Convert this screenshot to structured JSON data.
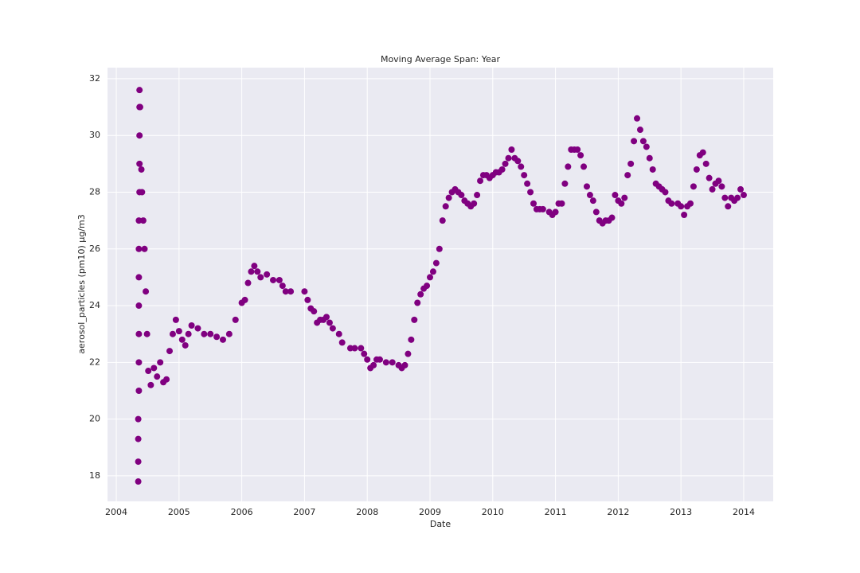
{
  "chart_data": {
    "type": "scatter",
    "title": "Moving Average Span: Year",
    "x_label": "Date",
    "y_label": "aerosol_particles (pm10) µg/m3",
    "color": "#800080",
    "grid": true,
    "xlim": [
      2003.86,
      2014.47
    ],
    "ylim": [
      17.1,
      32.39
    ],
    "xticks": [
      2004,
      2005,
      2006,
      2007,
      2008,
      2009,
      2010,
      2011,
      2012,
      2013,
      2014
    ],
    "yticks": [
      18,
      20,
      22,
      24,
      26,
      28,
      30,
      32
    ],
    "x": [
      2004.35,
      2004.35,
      2004.35,
      2004.35,
      2004.36,
      2004.36,
      2004.36,
      2004.36,
      2004.36,
      2004.36,
      2004.36,
      2004.37,
      2004.37,
      2004.37,
      2004.37,
      2004.37,
      2004.38,
      2004.4,
      2004.41,
      2004.43,
      2004.45,
      2004.47,
      2004.49,
      2004.51,
      2004.55,
      2004.6,
      2004.65,
      2004.7,
      2004.75,
      2004.8,
      2004.85,
      2004.9,
      2004.95,
      2005.0,
      2005.05,
      2005.1,
      2005.15,
      2005.2,
      2005.3,
      2005.4,
      2005.5,
      2005.6,
      2005.7,
      2005.8,
      2005.9,
      2006.0,
      2006.05,
      2006.1,
      2006.15,
      2006.2,
      2006.25,
      2006.3,
      2006.4,
      2006.5,
      2006.6,
      2006.65,
      2006.7,
      2006.78,
      2007.0,
      2007.05,
      2007.1,
      2007.15,
      2007.2,
      2007.25,
      2007.3,
      2007.35,
      2007.4,
      2007.45,
      2007.55,
      2007.6,
      2007.73,
      2007.8,
      2007.9,
      2007.95,
      2008.0,
      2008.05,
      2008.1,
      2008.15,
      2008.2,
      2008.3,
      2008.4,
      2008.5,
      2008.55,
      2008.6,
      2008.65,
      2008.7,
      2008.75,
      2008.8,
      2008.85,
      2008.9,
      2008.95,
      2009.0,
      2009.05,
      2009.1,
      2009.15,
      2009.2,
      2009.25,
      2009.3,
      2009.35,
      2009.4,
      2009.45,
      2009.5,
      2009.55,
      2009.6,
      2009.65,
      2009.7,
      2009.75,
      2009.8,
      2009.85,
      2009.9,
      2009.95,
      2010.0,
      2010.05,
      2010.1,
      2010.15,
      2010.2,
      2010.25,
      2010.3,
      2010.35,
      2010.4,
      2010.45,
      2010.5,
      2010.55,
      2010.6,
      2010.65,
      2010.7,
      2010.75,
      2010.8,
      2010.9,
      2010.95,
      2011.0,
      2011.05,
      2011.1,
      2011.15,
      2011.2,
      2011.25,
      2011.3,
      2011.35,
      2011.4,
      2011.45,
      2011.5,
      2011.55,
      2011.6,
      2011.65,
      2011.7,
      2011.75,
      2011.8,
      2011.85,
      2011.9,
      2011.95,
      2012.0,
      2012.05,
      2012.1,
      2012.15,
      2012.2,
      2012.25,
      2012.3,
      2012.35,
      2012.4,
      2012.45,
      2012.5,
      2012.55,
      2012.6,
      2012.65,
      2012.7,
      2012.75,
      2012.8,
      2012.85,
      2012.95,
      2013.0,
      2013.05,
      2013.1,
      2013.15,
      2013.2,
      2013.25,
      2013.3,
      2013.35,
      2013.4,
      2013.45,
      2013.5,
      2013.55,
      2013.6,
      2013.65,
      2013.7,
      2013.75,
      2013.8,
      2013.85,
      2013.9,
      2013.95,
      2014.0
    ],
    "values": [
      17.8,
      18.5,
      19.3,
      20.0,
      21.0,
      22.0,
      23.0,
      24.0,
      25.0,
      26.0,
      27.0,
      28.0,
      29.0,
      30.0,
      31.0,
      31.6,
      31.0,
      28.8,
      28.0,
      27.0,
      26.0,
      24.5,
      23.0,
      21.7,
      21.2,
      21.8,
      21.5,
      22.0,
      21.3,
      21.4,
      22.4,
      23.0,
      23.5,
      23.1,
      22.8,
      22.6,
      23.0,
      23.3,
      23.2,
      23.0,
      23.0,
      22.9,
      22.8,
      23.0,
      23.5,
      24.1,
      24.2,
      24.8,
      25.2,
      25.4,
      25.2,
      25.0,
      25.1,
      24.9,
      24.9,
      24.7,
      24.5,
      24.5,
      24.5,
      24.2,
      23.9,
      23.8,
      23.4,
      23.5,
      23.5,
      23.6,
      23.4,
      23.2,
      23.0,
      22.7,
      22.5,
      22.5,
      22.5,
      22.3,
      22.1,
      21.8,
      21.9,
      22.1,
      22.1,
      22.0,
      22.0,
      21.9,
      21.8,
      21.9,
      22.3,
      22.8,
      23.5,
      24.1,
      24.4,
      24.6,
      24.7,
      25.0,
      25.2,
      25.5,
      26.0,
      27.0,
      27.5,
      27.8,
      28.0,
      28.1,
      28.0,
      27.9,
      27.7,
      27.6,
      27.5,
      27.6,
      27.9,
      28.4,
      28.6,
      28.6,
      28.5,
      28.6,
      28.7,
      28.7,
      28.8,
      29.0,
      29.2,
      29.5,
      29.2,
      29.1,
      28.9,
      28.6,
      28.3,
      28.0,
      27.6,
      27.4,
      27.4,
      27.4,
      27.3,
      27.2,
      27.3,
      27.6,
      27.6,
      28.3,
      28.9,
      29.5,
      29.5,
      29.5,
      29.3,
      28.9,
      28.2,
      27.9,
      27.7,
      27.3,
      27.0,
      26.9,
      27.0,
      27.0,
      27.1,
      27.9,
      27.7,
      27.6,
      27.8,
      28.6,
      29.0,
      29.8,
      30.6,
      30.2,
      29.8,
      29.6,
      29.2,
      28.8,
      28.3,
      28.2,
      28.1,
      28.0,
      27.7,
      27.6,
      27.6,
      27.5,
      27.2,
      27.5,
      27.6,
      28.2,
      28.8,
      29.3,
      29.4,
      29.0,
      28.5,
      28.1,
      28.3,
      28.4,
      28.2,
      27.8,
      27.5,
      27.8,
      27.7,
      27.8,
      28.1,
      27.9
    ]
  }
}
